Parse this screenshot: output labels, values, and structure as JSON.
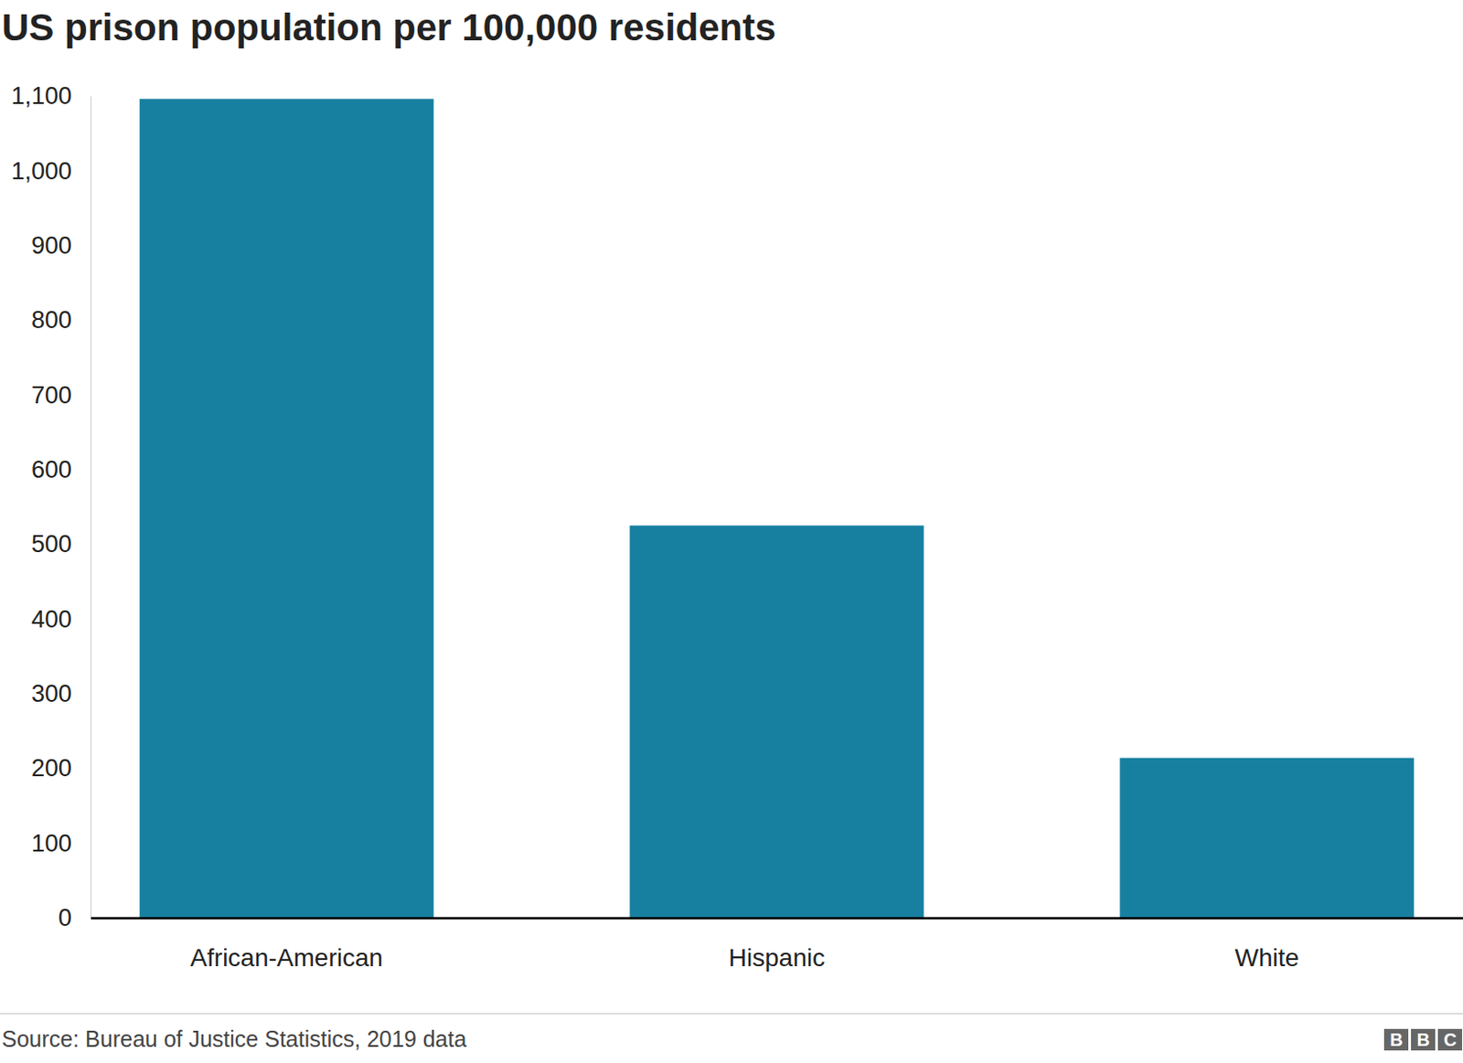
{
  "chart_data": {
    "type": "bar",
    "title": "US prison population per 100,000 residents",
    "categories": [
      "African-American",
      "Hispanic",
      "White"
    ],
    "values": [
      1096,
      525,
      214
    ],
    "color": "#1780a1",
    "ylim": [
      0,
      1100
    ],
    "yticks": [
      0,
      100,
      200,
      300,
      400,
      500,
      600,
      700,
      800,
      900,
      {
        "value": 1000,
        "label": "1,000"
      },
      {
        "value": 1100,
        "label": "1,100"
      }
    ],
    "grid": false,
    "source": "Source: Bureau of Justice Statistics, 2019 data",
    "logo": "BBC"
  }
}
